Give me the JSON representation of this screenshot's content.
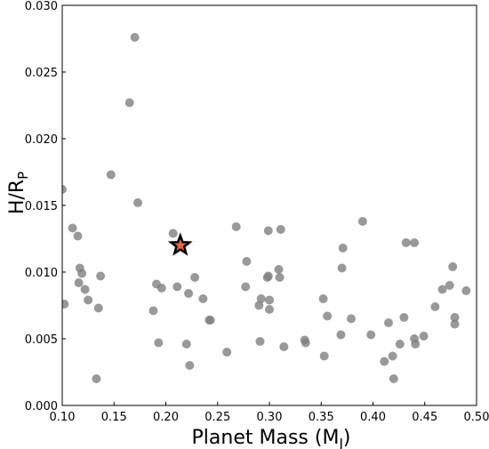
{
  "chart_data": {
    "type": "scatter",
    "title": "",
    "xlabel": {
      "main": "Planet Mass (M",
      "sub": "J",
      "close": ")"
    },
    "ylabel": {
      "main": "H/R",
      "sub": "P"
    },
    "xlim": [
      0.1,
      0.5
    ],
    "ylim": [
      0.0,
      0.03
    ],
    "xticks": [
      "0.10",
      "0.15",
      "0.20",
      "0.25",
      "0.30",
      "0.35",
      "0.40",
      "0.45",
      "0.50"
    ],
    "yticks": [
      "0.000",
      "0.005",
      "0.010",
      "0.015",
      "0.020",
      "0.025",
      "0.030"
    ],
    "grid": false,
    "marker_color": "#808080",
    "highlight_fill": "#e8663d",
    "highlight_edge": "#000000",
    "series": [
      {
        "points": [
          [
            0.1,
            0.0162
          ],
          [
            0.102,
            0.0076
          ],
          [
            0.11,
            0.0133
          ],
          [
            0.115,
            0.0127
          ],
          [
            0.117,
            0.0103
          ],
          [
            0.119,
            0.0099
          ],
          [
            0.116,
            0.0092
          ],
          [
            0.122,
            0.0087
          ],
          [
            0.125,
            0.0079
          ],
          [
            0.133,
            0.002
          ],
          [
            0.135,
            0.0073
          ],
          [
            0.137,
            0.0097
          ],
          [
            0.147,
            0.0173
          ],
          [
            0.165,
            0.0227
          ],
          [
            0.17,
            0.0276
          ],
          [
            0.173,
            0.0152
          ],
          [
            0.188,
            0.0071
          ],
          [
            0.191,
            0.0091
          ],
          [
            0.193,
            0.0047
          ],
          [
            0.196,
            0.0088
          ],
          [
            0.207,
            0.0129
          ],
          [
            0.211,
            0.0089
          ],
          [
            0.22,
            0.0046
          ],
          [
            0.222,
            0.0084
          ],
          [
            0.223,
            0.003
          ],
          [
            0.228,
            0.0096
          ],
          [
            0.236,
            0.008
          ],
          [
            0.242,
            0.0064
          ],
          [
            0.243,
            0.0064
          ],
          [
            0.259,
            0.004
          ],
          [
            0.268,
            0.0134
          ],
          [
            0.278,
            0.0108
          ],
          [
            0.277,
            0.0089
          ],
          [
            0.29,
            0.0075
          ],
          [
            0.292,
            0.008
          ],
          [
            0.291,
            0.0048
          ],
          [
            0.298,
            0.0096
          ],
          [
            0.299,
            0.0131
          ],
          [
            0.3,
            0.0079
          ],
          [
            0.3,
            0.0072
          ],
          [
            0.299,
            0.0097
          ],
          [
            0.309,
            0.0102
          ],
          [
            0.311,
            0.0132
          ],
          [
            0.31,
            0.0096
          ],
          [
            0.314,
            0.0044
          ],
          [
            0.334,
            0.0049
          ],
          [
            0.335,
            0.0047
          ],
          [
            0.352,
            0.008
          ],
          [
            0.353,
            0.0037
          ],
          [
            0.356,
            0.0067
          ],
          [
            0.369,
            0.0053
          ],
          [
            0.37,
            0.0103
          ],
          [
            0.371,
            0.0118
          ],
          [
            0.379,
            0.0065
          ],
          [
            0.39,
            0.0138
          ],
          [
            0.398,
            0.0053
          ],
          [
            0.411,
            0.0033
          ],
          [
            0.415,
            0.0062
          ],
          [
            0.419,
            0.0037
          ],
          [
            0.42,
            0.002
          ],
          [
            0.426,
            0.0046
          ],
          [
            0.43,
            0.0066
          ],
          [
            0.432,
            0.0122
          ],
          [
            0.44,
            0.0122
          ],
          [
            0.44,
            0.005
          ],
          [
            0.441,
            0.0046
          ],
          [
            0.449,
            0.0052
          ],
          [
            0.46,
            0.0074
          ],
          [
            0.467,
            0.0087
          ],
          [
            0.474,
            0.009
          ],
          [
            0.477,
            0.0104
          ],
          [
            0.479,
            0.0066
          ],
          [
            0.479,
            0.0061
          ],
          [
            0.49,
            0.0086
          ]
        ]
      },
      {
        "marker": "star",
        "points": [
          [
            0.214,
            0.012
          ]
        ]
      }
    ]
  }
}
